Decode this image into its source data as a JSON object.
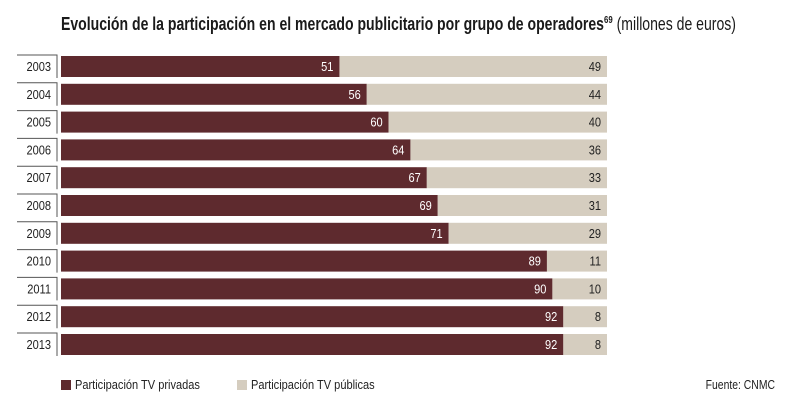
{
  "chart_data": {
    "type": "bar",
    "stacked": true,
    "orientation": "horizontal",
    "title": "Evolución de la participación en el mercado publicitario por grupo de operadores",
    "title_superscript": "69",
    "subtitle": "(millones de euros)",
    "categories": [
      "2003",
      "2004",
      "2005",
      "2006",
      "2007",
      "2008",
      "2009",
      "2010",
      "2011",
      "2012",
      "2013"
    ],
    "series": [
      {
        "name": "Participación TV privadas",
        "color": "#5e2a2e",
        "values": [
          51,
          56,
          60,
          64,
          67,
          69,
          71,
          89,
          90,
          92,
          92
        ]
      },
      {
        "name": "Participación TV públicas",
        "color": "#d5cdbf",
        "values": [
          49,
          44,
          40,
          36,
          33,
          31,
          29,
          11,
          10,
          8,
          8
        ]
      }
    ],
    "xlim": [
      0,
      100
    ],
    "legend_position": "bottom-left",
    "source": "Fuente: CNMC"
  }
}
